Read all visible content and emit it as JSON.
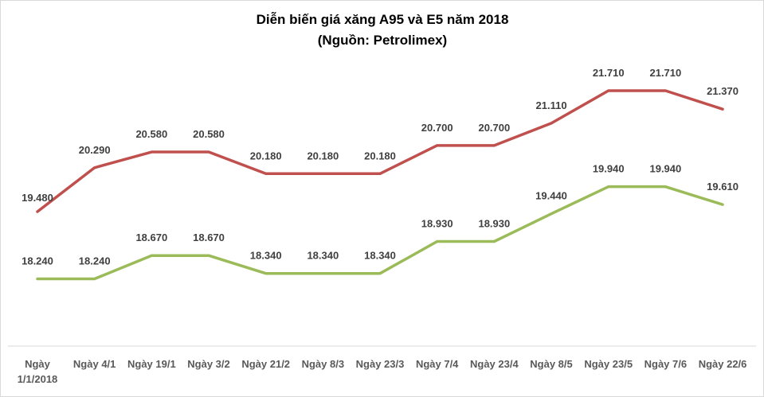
{
  "chart_data": {
    "type": "line",
    "title": "Diễn biến giá xăng A95 và E5 năm 2018",
    "subtitle": "(Nguồn: Petrolimex)",
    "categories": [
      "Ngày 1/1/2018",
      "Ngày 4/1",
      "Ngày 19/1",
      "Ngày 3/2",
      "Ngày 21/2",
      "Ngày 8/3",
      "Ngày 23/3",
      "Ngày 7/4",
      "Ngày 23/4",
      "Ngày 8/5",
      "Ngày 23/5",
      "Ngày 7/6",
      "Ngày 22/6"
    ],
    "series": [
      {
        "name": "A95",
        "color": "#c0504d",
        "values": [
          19480,
          20290,
          20580,
          20580,
          20180,
          20180,
          20180,
          20700,
          20700,
          21110,
          21710,
          21710,
          21370
        ],
        "labels": [
          "19.480",
          "20.290",
          "20.580",
          "20.580",
          "20.180",
          "20.180",
          "20.180",
          "20.700",
          "20.700",
          "21.110",
          "21.710",
          "21.710",
          "21.370"
        ]
      },
      {
        "name": "E5",
        "color": "#9bbb59",
        "values": [
          18240,
          18240,
          18670,
          18670,
          18340,
          18340,
          18340,
          18930,
          18930,
          19440,
          19940,
          19940,
          19610
        ],
        "labels": [
          "18.240",
          "18.240",
          "18.670",
          "18.670",
          "18.340",
          "18.340",
          "18.340",
          "18.930",
          "18.930",
          "19.440",
          "19.940",
          "19.940",
          "19.610"
        ]
      }
    ],
    "xlabel": "",
    "ylabel": "",
    "grid": false,
    "legend": "none"
  }
}
